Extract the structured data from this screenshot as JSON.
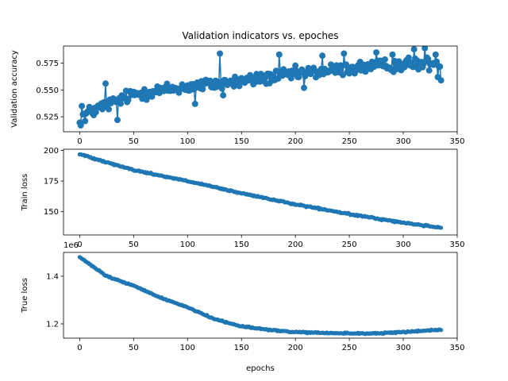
{
  "chart_data": {
    "type": "line",
    "title": "Validation indicators vs. epoches",
    "xlabel": "epochs",
    "color": "#1f77b4",
    "x_range": [
      0,
      335
    ],
    "subplots": [
      {
        "name": "validation-accuracy",
        "ylabel": "Validation accuracy",
        "xlim": [
          -15,
          350
        ],
        "ylim": [
          0.511,
          0.591
        ],
        "yticks": [
          0.525,
          0.55,
          0.575
        ],
        "ytick_labels": [
          "0.525",
          "0.550",
          "0.575"
        ],
        "xticks": [
          0,
          50,
          100,
          150,
          200,
          250,
          300,
          350
        ],
        "xtick_labels": [
          "0",
          "50",
          "100",
          "150",
          "200",
          "250",
          "300",
          "350"
        ],
        "marker_size": 4,
        "trend": [
          [
            0,
            0.525
          ],
          [
            20,
            0.534
          ],
          [
            50,
            0.546
          ],
          [
            100,
            0.553
          ],
          [
            150,
            0.558
          ],
          [
            200,
            0.565
          ],
          [
            250,
            0.57
          ],
          [
            300,
            0.574
          ],
          [
            335,
            0.575
          ]
        ],
        "noise": 0.009,
        "spikes": [
          [
            1,
            0.517
          ],
          [
            2,
            0.535
          ],
          [
            5,
            0.521
          ],
          [
            24,
            0.556
          ],
          [
            35,
            0.522
          ],
          [
            107,
            0.537
          ],
          [
            130,
            0.584
          ],
          [
            133,
            0.545
          ],
          [
            185,
            0.583
          ],
          [
            208,
            0.552
          ],
          [
            225,
            0.582
          ],
          [
            245,
            0.584
          ],
          [
            275,
            0.585
          ],
          [
            290,
            0.583
          ],
          [
            310,
            0.588
          ],
          [
            320,
            0.589
          ],
          [
            330,
            0.583
          ],
          [
            332,
            0.562
          ],
          [
            335,
            0.559
          ]
        ]
      },
      {
        "name": "train-loss",
        "ylabel": "Train loss",
        "xlim": [
          -15,
          350
        ],
        "ylim": [
          131,
          201
        ],
        "yticks": [
          150,
          175,
          200
        ],
        "ytick_labels": [
          "150",
          "175",
          "200"
        ],
        "xticks": [
          0,
          50,
          100,
          150,
          200,
          250,
          300,
          350
        ],
        "xtick_labels": [
          "0",
          "50",
          "100",
          "150",
          "200",
          "250",
          "300",
          "350"
        ],
        "marker_size": 2.6,
        "trend": [
          [
            0,
            197
          ],
          [
            50,
            184
          ],
          [
            100,
            175
          ],
          [
            150,
            165
          ],
          [
            200,
            156
          ],
          [
            250,
            148
          ],
          [
            300,
            141
          ],
          [
            335,
            137
          ]
        ],
        "noise": 0.9,
        "spikes": []
      },
      {
        "name": "true-loss",
        "ylabel": "True loss",
        "xlim": [
          -15,
          350
        ],
        "ylim": [
          1.14,
          1.5
        ],
        "yticks": [
          1.2,
          1.4
        ],
        "ytick_labels": [
          "1.2",
          "1.4"
        ],
        "xticks": [
          0,
          50,
          100,
          150,
          200,
          250,
          300,
          350
        ],
        "xtick_labels": [
          "0",
          "50",
          "100",
          "150",
          "200",
          "250",
          "300",
          "350"
        ],
        "offset_text": "1e6",
        "marker_size": 2.6,
        "trend": [
          [
            0,
            1.48
          ],
          [
            25,
            1.4
          ],
          [
            50,
            1.36
          ],
          [
            75,
            1.31
          ],
          [
            100,
            1.27
          ],
          [
            125,
            1.22
          ],
          [
            150,
            1.19
          ],
          [
            175,
            1.175
          ],
          [
            200,
            1.165
          ],
          [
            225,
            1.162
          ],
          [
            250,
            1.16
          ],
          [
            275,
            1.16
          ],
          [
            300,
            1.165
          ],
          [
            320,
            1.172
          ],
          [
            335,
            1.175
          ]
        ],
        "noise": 0.004,
        "spikes": []
      }
    ]
  }
}
